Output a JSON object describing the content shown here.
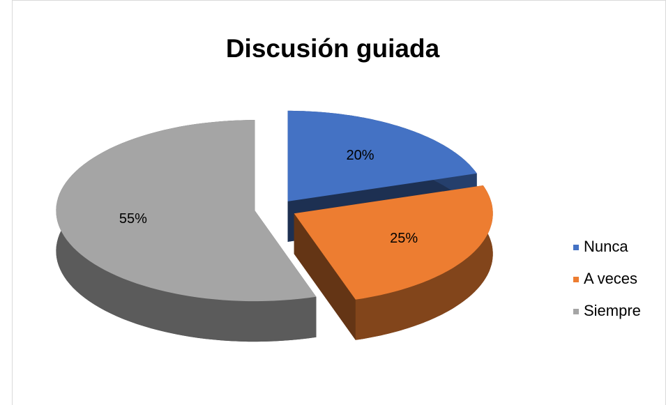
{
  "chart_data": {
    "type": "pie",
    "title": "Discusión guiada",
    "categories": [
      "Nunca",
      "A veces",
      "Siempre"
    ],
    "values": [
      20,
      25,
      55
    ],
    "value_labels": [
      "20%",
      "25%",
      "55%"
    ],
    "colors": [
      "#4472c4",
      "#ed7d31",
      "#a5a5a5"
    ],
    "legend": "right"
  }
}
